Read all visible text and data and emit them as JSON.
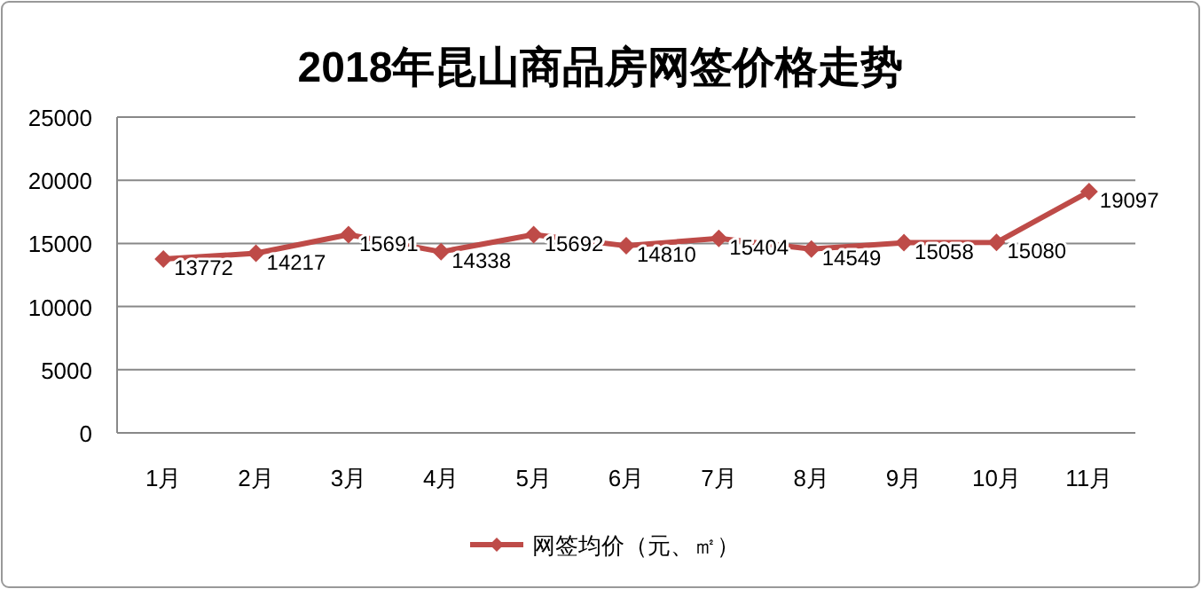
{
  "chart_data": {
    "type": "line",
    "title": "2018年昆山商品房网签价格走势",
    "categories": [
      "1月",
      "2月",
      "3月",
      "4月",
      "5月",
      "6月",
      "7月",
      "8月",
      "9月",
      "10月",
      "11月"
    ],
    "series": [
      {
        "name": "网签均价（元、㎡）",
        "color": "#be4b48",
        "values": [
          13772,
          14217,
          15691,
          14338,
          15692,
          14810,
          15404,
          14549,
          15058,
          15080,
          19097
        ]
      }
    ],
    "ylim": [
      0,
      25000
    ],
    "yticks": [
      0,
      5000,
      10000,
      15000,
      20000,
      25000
    ],
    "grid": "y",
    "legend": "bottom",
    "marker": "diamond",
    "line_style": "solid",
    "data_labels": true
  }
}
